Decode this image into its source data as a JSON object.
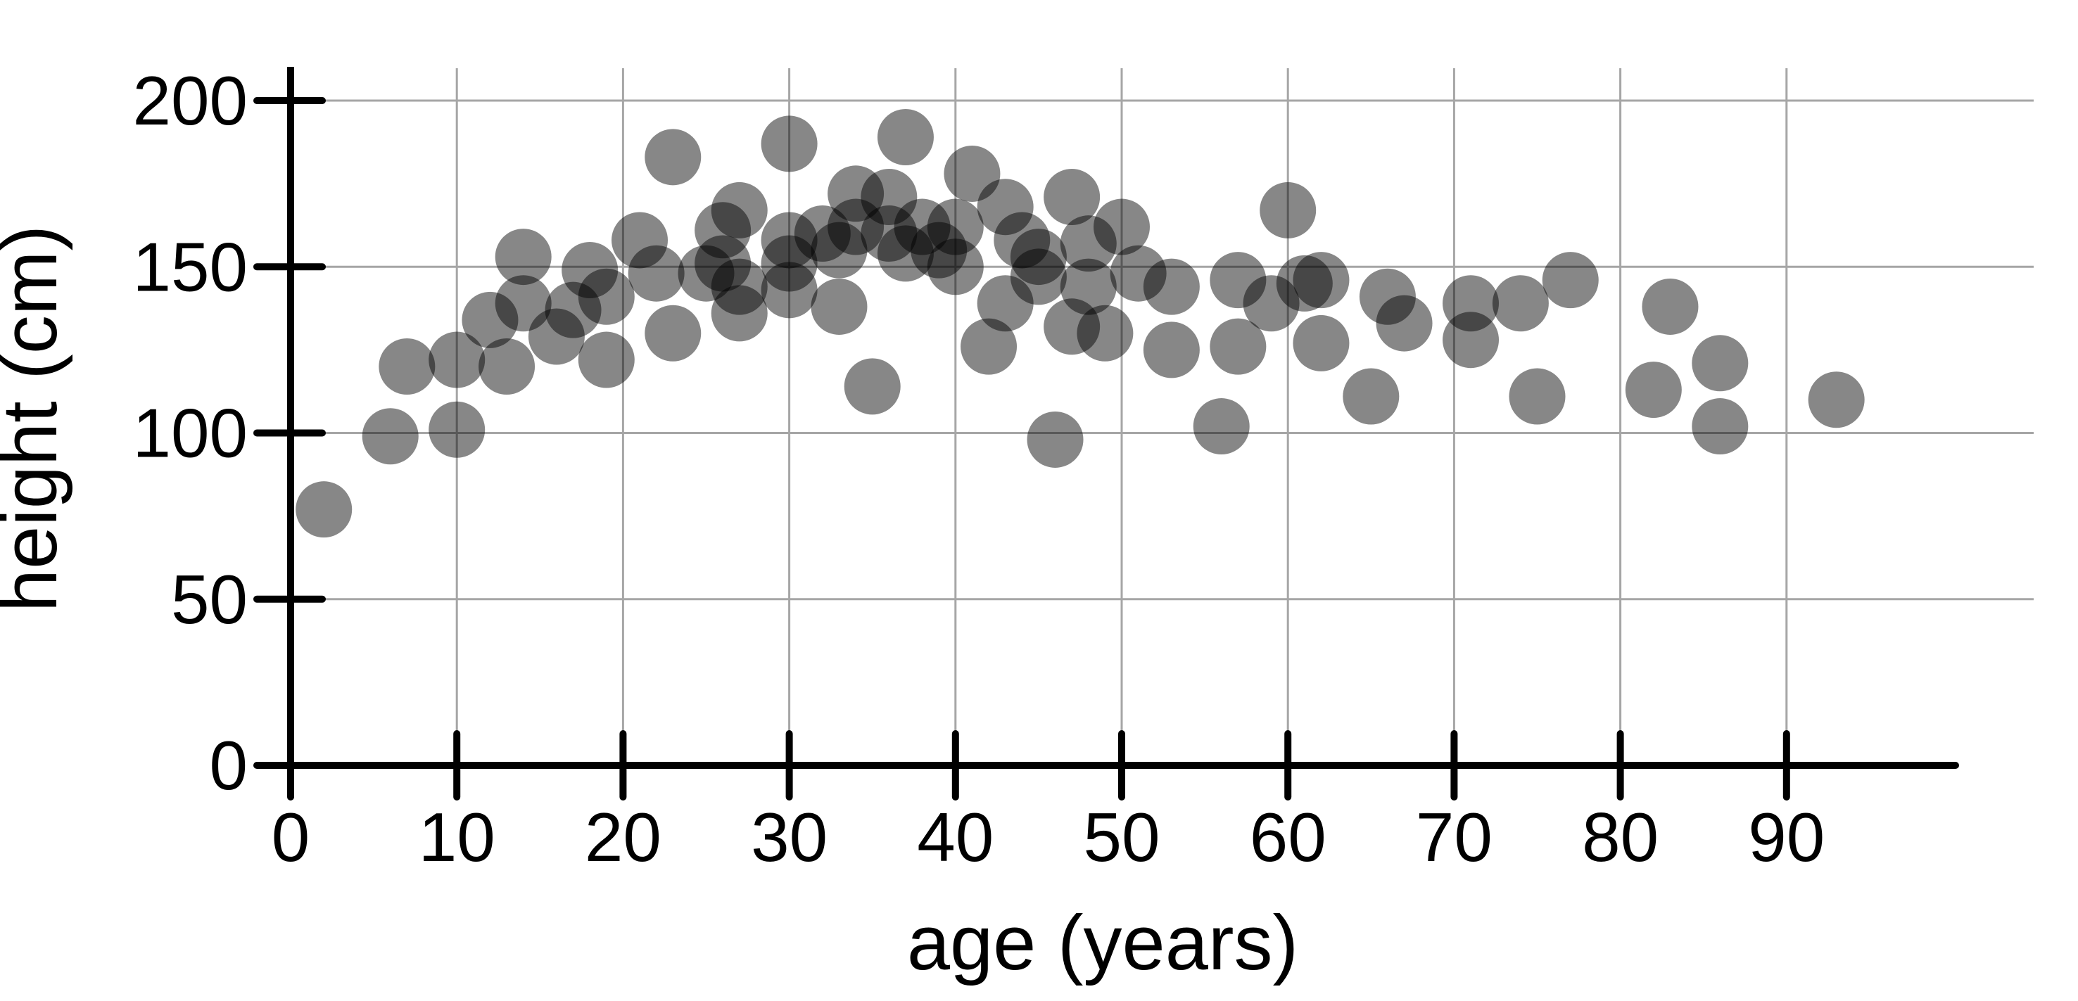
{
  "chart_data": {
    "type": "scatter",
    "title": "",
    "xlabel": "age (years)",
    "ylabel": "height (cm)",
    "xlim": [
      0,
      105
    ],
    "ylim": [
      0,
      200
    ],
    "xticks": [
      0,
      10,
      20,
      30,
      40,
      50,
      60,
      70,
      80,
      90
    ],
    "yticks": [
      0,
      50,
      100,
      150,
      200
    ],
    "grid": true,
    "legend": "none",
    "grid_color": "#a6a6a6",
    "axis_color": "#000000",
    "text_color": "#000000",
    "point_color": "#000000",
    "point_opacity": 0.47,
    "points": [
      [
        2,
        77
      ],
      [
        6,
        99
      ],
      [
        7,
        120
      ],
      [
        10,
        101
      ],
      [
        10,
        122
      ],
      [
        12,
        134
      ],
      [
        13,
        120
      ],
      [
        14,
        139
      ],
      [
        14,
        153
      ],
      [
        16,
        129
      ],
      [
        17,
        137
      ],
      [
        18,
        149
      ],
      [
        19,
        141
      ],
      [
        19,
        122
      ],
      [
        21,
        158
      ],
      [
        22,
        148
      ],
      [
        23,
        130
      ],
      [
        23,
        183
      ],
      [
        25,
        148
      ],
      [
        26,
        151
      ],
      [
        26,
        161
      ],
      [
        27,
        136
      ],
      [
        27,
        144
      ],
      [
        27,
        167
      ],
      [
        30,
        187
      ],
      [
        30,
        158
      ],
      [
        30,
        151
      ],
      [
        30,
        143
      ],
      [
        32,
        160
      ],
      [
        33,
        138
      ],
      [
        33,
        155
      ],
      [
        34,
        172
      ],
      [
        34,
        162
      ],
      [
        35,
        114
      ],
      [
        36,
        171
      ],
      [
        36,
        160
      ],
      [
        37,
        154
      ],
      [
        37,
        189
      ],
      [
        38,
        162
      ],
      [
        39,
        155
      ],
      [
        40,
        150
      ],
      [
        40,
        162
      ],
      [
        41,
        178
      ],
      [
        42,
        126
      ],
      [
        43,
        139
      ],
      [
        43,
        168
      ],
      [
        44,
        158
      ],
      [
        45,
        153
      ],
      [
        45,
        147
      ],
      [
        46,
        98
      ],
      [
        47,
        171
      ],
      [
        47,
        132
      ],
      [
        48,
        157
      ],
      [
        48,
        144
      ],
      [
        49,
        130
      ],
      [
        50,
        162
      ],
      [
        51,
        148
      ],
      [
        53,
        144
      ],
      [
        53,
        125
      ],
      [
        56,
        102
      ],
      [
        57,
        146
      ],
      [
        57,
        126
      ],
      [
        59,
        139
      ],
      [
        60,
        167
      ],
      [
        61,
        145
      ],
      [
        62,
        146
      ],
      [
        62,
        127
      ],
      [
        65,
        111
      ],
      [
        66,
        141
      ],
      [
        67,
        133
      ],
      [
        71,
        139
      ],
      [
        71,
        128
      ],
      [
        74,
        139
      ],
      [
        75,
        111
      ],
      [
        77,
        146
      ],
      [
        82,
        113
      ],
      [
        83,
        138
      ],
      [
        86,
        121
      ],
      [
        86,
        102
      ],
      [
        93,
        110
      ]
    ]
  }
}
